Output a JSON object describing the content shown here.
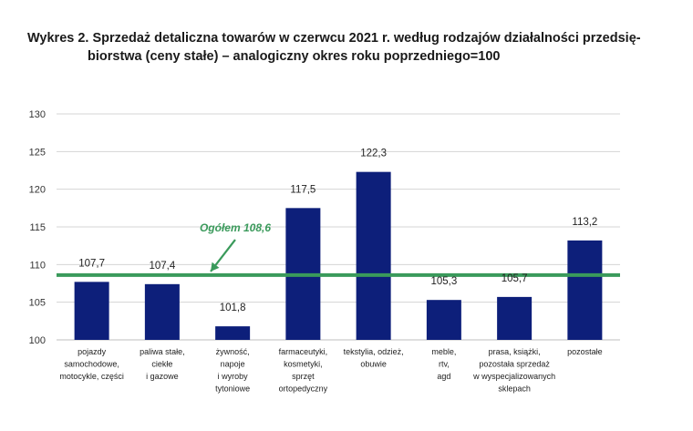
{
  "title_line1": "Wykres 2. Sprzedaż detaliczna towarów w czerwcu 2021 r. według rodzajów działalności przedsię-",
  "title_line2": "biorstwa (ceny stałe) – analogiczny okres roku poprzedniego=100",
  "colors": {
    "bar": "#0d1f7a",
    "reference": "#3a9a5b",
    "grid": "#d4d4d4"
  },
  "chart_data": {
    "type": "bar",
    "title": "Wykres 2. Sprzedaż detaliczna towarów w czerwcu 2021 r. według rodzajów działalności przedsiębiorstwa (ceny stałe) – analogiczny okres roku poprzedniego=100",
    "categories": [
      [
        "pojazdy",
        "samochodowe,",
        "motocykle, części"
      ],
      [
        "paliwa stałe,",
        "ciekłe",
        "i gazowe"
      ],
      [
        "żywność,",
        "napoje",
        "i wyroby",
        "tytoniowe"
      ],
      [
        "farmaceutyki,",
        "kosmetyki,",
        "sprzęt",
        "ortopedyczny"
      ],
      [
        "tekstylia, odzież,",
        "obuwie"
      ],
      [
        "meble,",
        "rtv,",
        "agd"
      ],
      [
        "prasa, książki,",
        "pozostała sprzedaż",
        "w wyspecjalizowanych",
        "sklepach"
      ],
      [
        "pozostałe"
      ]
    ],
    "values": [
      107.7,
      107.4,
      101.8,
      117.5,
      122.3,
      105.3,
      105.7,
      113.2
    ],
    "value_labels": [
      "107,7",
      "107,4",
      "101,8",
      "117,5",
      "122,3",
      "105,3",
      "105,7",
      "113,2"
    ],
    "ylim": [
      100,
      130
    ],
    "yticks": [
      100,
      105,
      110,
      115,
      120,
      125,
      130
    ],
    "grid": true,
    "reference_line": {
      "value": 108.6,
      "label": "Ogółem 108,6"
    }
  }
}
